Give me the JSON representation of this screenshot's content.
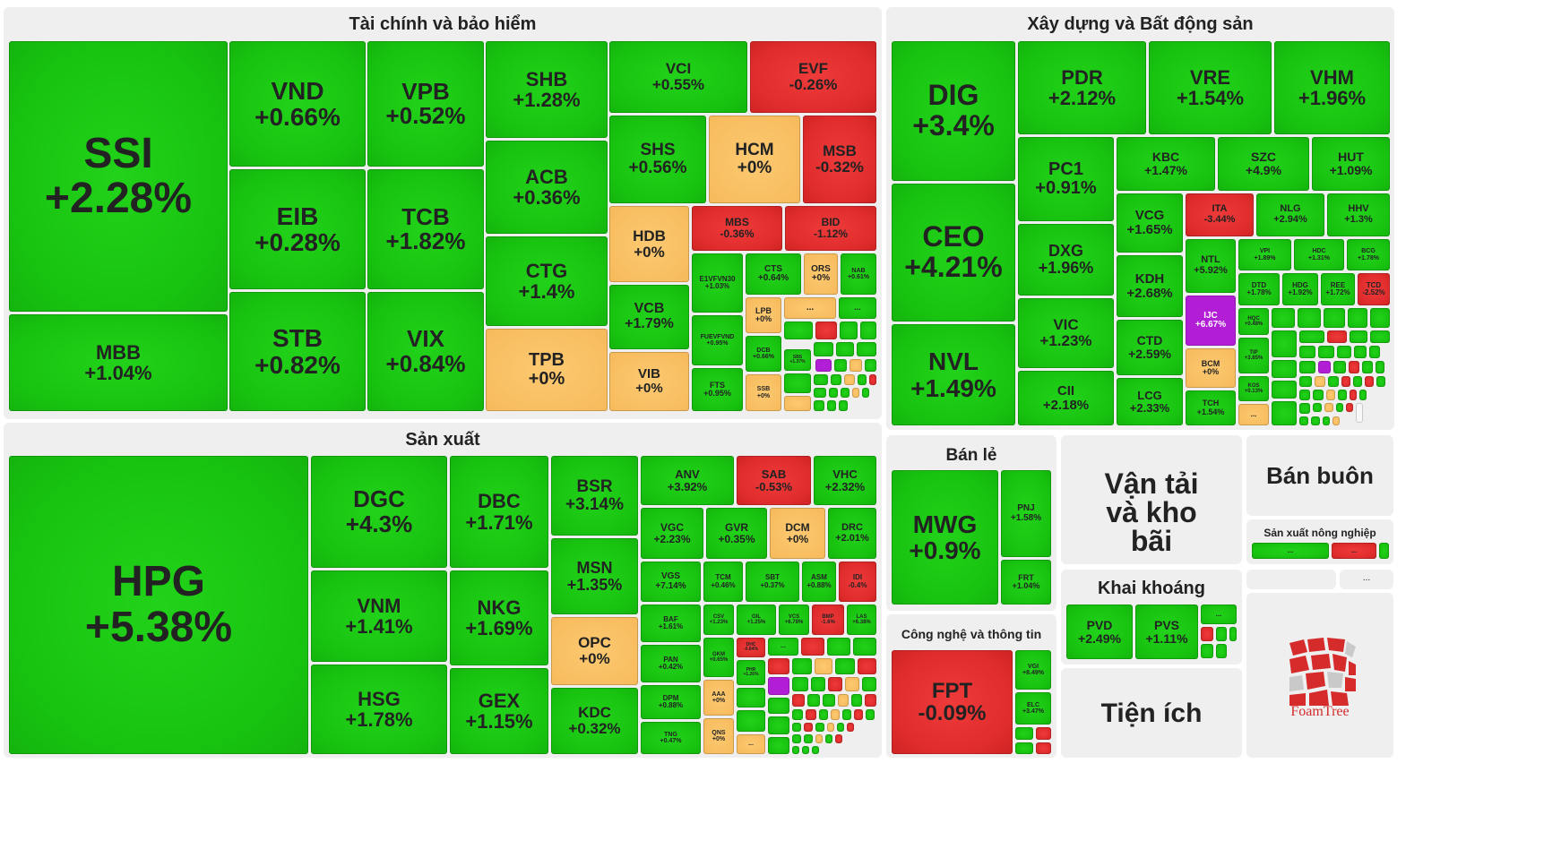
{
  "colors": {
    "up": "#18c310",
    "down": "#e02c2c",
    "flat": "#f6ba5b",
    "ceiling": "#b21ed6",
    "panel": "#efefef"
  },
  "groups": {
    "finance": "Tài chính và bảo hiểm",
    "realestate": "Xây dựng và Bất động sản",
    "manufacturing": "Sản xuất",
    "retail": "Bán lẻ",
    "transport": "Vận tải và kho bãi",
    "wholesale": "Bán buôn",
    "agri": "Sản xuất nông nghiệp",
    "it": "Công nghệ và thông tin",
    "mining": "Khai khoáng",
    "utilities": "Tiện ích"
  },
  "logo": {
    "text": "FoamTree"
  },
  "tiles": {
    "ssi": {
      "sym": "SSI",
      "chg": "+2.28%"
    },
    "mbb": {
      "sym": "MBB",
      "chg": "+1.04%"
    },
    "vnd": {
      "sym": "VND",
      "chg": "+0.66%"
    },
    "vpb": {
      "sym": "VPB",
      "chg": "+0.52%"
    },
    "eib": {
      "sym": "EIB",
      "chg": "+0.28%"
    },
    "tcb": {
      "sym": "TCB",
      "chg": "+1.82%"
    },
    "stb": {
      "sym": "STB",
      "chg": "+0.82%"
    },
    "vix": {
      "sym": "VIX",
      "chg": "+0.84%"
    },
    "shb": {
      "sym": "SHB",
      "chg": "+1.28%"
    },
    "acb": {
      "sym": "ACB",
      "chg": "+0.36%"
    },
    "ctg": {
      "sym": "CTG",
      "chg": "+1.4%"
    },
    "tpb": {
      "sym": "TPB",
      "chg": "+0%"
    },
    "vci": {
      "sym": "VCI",
      "chg": "+0.55%"
    },
    "evf": {
      "sym": "EVF",
      "chg": "-0.26%"
    },
    "shs": {
      "sym": "SHS",
      "chg": "+0.56%"
    },
    "hcm": {
      "sym": "HCM",
      "chg": "+0%"
    },
    "msb": {
      "sym": "MSB",
      "chg": "-0.32%"
    },
    "hdb": {
      "sym": "HDB",
      "chg": "+0%"
    },
    "mbs": {
      "sym": "MBS",
      "chg": "-0.36%"
    },
    "bid": {
      "sym": "BID",
      "chg": "-1.12%"
    },
    "vcb": {
      "sym": "VCB",
      "chg": "+1.79%"
    },
    "vib": {
      "sym": "VIB",
      "chg": "+0%"
    },
    "e1vfvn30": {
      "sym": "E1VFVN30",
      "chg": "+1.03%"
    },
    "cts": {
      "sym": "CTS",
      "chg": "+0.64%"
    },
    "ors": {
      "sym": "ORS",
      "chg": "+0%"
    },
    "nab": {
      "sym": "NAB",
      "chg": "+0.61%"
    },
    "lpb": {
      "sym": "LPB",
      "chg": "+0%"
    },
    "fuevfvnd": {
      "sym": "FUEVFVND",
      "chg": "+0.95%"
    },
    "dcb": {
      "sym": "DCB",
      "chg": "+0.66%"
    },
    "sbs": {
      "sym": "SBS",
      "chg": "+1.37%"
    },
    "fts": {
      "sym": "FTS",
      "chg": "+0.95%"
    },
    "ssb": {
      "sym": "SSB",
      "chg": "+0%"
    },
    "dig": {
      "sym": "DIG",
      "chg": "+3.4%"
    },
    "pdr": {
      "sym": "PDR",
      "chg": "+2.12%"
    },
    "vre": {
      "sym": "VRE",
      "chg": "+1.54%"
    },
    "vhm": {
      "sym": "VHM",
      "chg": "+1.96%"
    },
    "ceo": {
      "sym": "CEO",
      "chg": "+4.21%"
    },
    "pc1": {
      "sym": "PC1",
      "chg": "+0.91%"
    },
    "kbc": {
      "sym": "KBC",
      "chg": "+1.47%"
    },
    "szc": {
      "sym": "SZC",
      "chg": "+4.9%"
    },
    "hut": {
      "sym": "HUT",
      "chg": "+1.09%"
    },
    "dxg": {
      "sym": "DXG",
      "chg": "+1.96%"
    },
    "vcg": {
      "sym": "VCG",
      "chg": "+1.65%"
    },
    "ita": {
      "sym": "ITA",
      "chg": "-3.44%"
    },
    "nlg": {
      "sym": "NLG",
      "chg": "+2.94%"
    },
    "hhv": {
      "sym": "HHV",
      "chg": "+1.3%"
    },
    "ntl": {
      "sym": "NTL",
      "chg": "+5.92%"
    },
    "vpi": {
      "sym": "VPI",
      "chg": "+1.89%"
    },
    "hdc": {
      "sym": "HDC",
      "chg": "+1.31%"
    },
    "bcg": {
      "sym": "BCG",
      "chg": "+1.78%"
    },
    "kdh": {
      "sym": "KDH",
      "chg": "+2.68%"
    },
    "dtd": {
      "sym": "DTD",
      "chg": "+1.78%"
    },
    "hdg": {
      "sym": "HDG",
      "chg": "+1.92%"
    },
    "ree": {
      "sym": "REE",
      "chg": "+1.72%"
    },
    "tcd": {
      "sym": "TCD",
      "chg": "-2.52%"
    },
    "ijc": {
      "sym": "IJC",
      "chg": "+6.67%"
    },
    "hqc": {
      "sym": "HQC",
      "chg": "+0.48%"
    },
    "nvl": {
      "sym": "NVL",
      "chg": "+1.49%"
    },
    "vic": {
      "sym": "VIC",
      "chg": "+1.23%"
    },
    "ctd": {
      "sym": "CTD",
      "chg": "+2.59%"
    },
    "bcm": {
      "sym": "BCM",
      "chg": "+0%"
    },
    "tip": {
      "sym": "TIP",
      "chg": "+3.85%"
    },
    "kos": {
      "sym": "KOS",
      "chg": "+0.13%"
    },
    "cii": {
      "sym": "CII",
      "chg": "+2.18%"
    },
    "lcg": {
      "sym": "LCG",
      "chg": "+2.33%"
    },
    "tch": {
      "sym": "TCH",
      "chg": "+1.54%"
    },
    "hpg": {
      "sym": "HPG",
      "chg": "+5.38%"
    },
    "dgc": {
      "sym": "DGC",
      "chg": "+4.3%"
    },
    "dbc": {
      "sym": "DBC",
      "chg": "+1.71%"
    },
    "bsr": {
      "sym": "BSR",
      "chg": "+3.14%"
    },
    "msn": {
      "sym": "MSN",
      "chg": "+1.35%"
    },
    "vnm": {
      "sym": "VNM",
      "chg": "+1.41%"
    },
    "nkg": {
      "sym": "NKG",
      "chg": "+1.69%"
    },
    "opc": {
      "sym": "OPC",
      "chg": "+0%"
    },
    "hsg": {
      "sym": "HSG",
      "chg": "+1.78%"
    },
    "gex": {
      "sym": "GEX",
      "chg": "+1.15%"
    },
    "kdc": {
      "sym": "KDC",
      "chg": "+0.32%"
    },
    "anv": {
      "sym": "ANV",
      "chg": "+3.92%"
    },
    "sab": {
      "sym": "SAB",
      "chg": "-0.53%"
    },
    "vhc": {
      "sym": "VHC",
      "chg": "+2.32%"
    },
    "vgc": {
      "sym": "VGC",
      "chg": "+2.23%"
    },
    "gvr": {
      "sym": "GVR",
      "chg": "+0.35%"
    },
    "dcm": {
      "sym": "DCM",
      "chg": "+0%"
    },
    "drc": {
      "sym": "DRC",
      "chg": "+2.01%"
    },
    "vgs": {
      "sym": "VGS",
      "chg": "+7.14%"
    },
    "tcm": {
      "sym": "TCM",
      "chg": "+0.46%"
    },
    "sbt": {
      "sym": "SBT",
      "chg": "+0.37%"
    },
    "asm": {
      "sym": "ASM",
      "chg": "+0.88%"
    },
    "idi": {
      "sym": "IDI",
      "chg": "-0.4%"
    },
    "baf": {
      "sym": "BAF",
      "chg": "+1.61%"
    },
    "csv": {
      "sym": "CSV",
      "chg": "+1.23%"
    },
    "gil": {
      "sym": "GIL",
      "chg": "+1.25%"
    },
    "vcs": {
      "sym": "VCS",
      "chg": "+6.78%"
    },
    "bmp": {
      "sym": "BMP",
      "chg": "-1.6%"
    },
    "las": {
      "sym": "LAS",
      "chg": "+6.38%"
    },
    "pan": {
      "sym": "PAN",
      "chg": "+0.42%"
    },
    "gkm": {
      "sym": "GKM",
      "chg": "+0.65%"
    },
    "dhc": {
      "sym": "DHC",
      "chg": "-0.84%"
    },
    "phr": {
      "sym": "PHR",
      "chg": "+1.26%"
    },
    "dpm": {
      "sym": "DPM",
      "chg": "+0.88%"
    },
    "aaa": {
      "sym": "AAA",
      "chg": "+0%"
    },
    "tng": {
      "sym": "TNG",
      "chg": "+0.47%"
    },
    "qns": {
      "sym": "QNS",
      "chg": "+0%"
    },
    "mwg": {
      "sym": "MWG",
      "chg": "+0.9%"
    },
    "pnj": {
      "sym": "PNJ",
      "chg": "+1.58%"
    },
    "frt": {
      "sym": "FRT",
      "chg": "+1.04%"
    },
    "fpt": {
      "sym": "FPT",
      "chg": "-0.09%"
    },
    "vgi": {
      "sym": "VGI",
      "chg": "+8.49%"
    },
    "elc": {
      "sym": "ELC",
      "chg": "+3.47%"
    },
    "pvd": {
      "sym": "PVD",
      "chg": "+2.49%"
    },
    "pvs": {
      "sym": "PVS",
      "chg": "+1.11%"
    }
  },
  "more": "..."
}
